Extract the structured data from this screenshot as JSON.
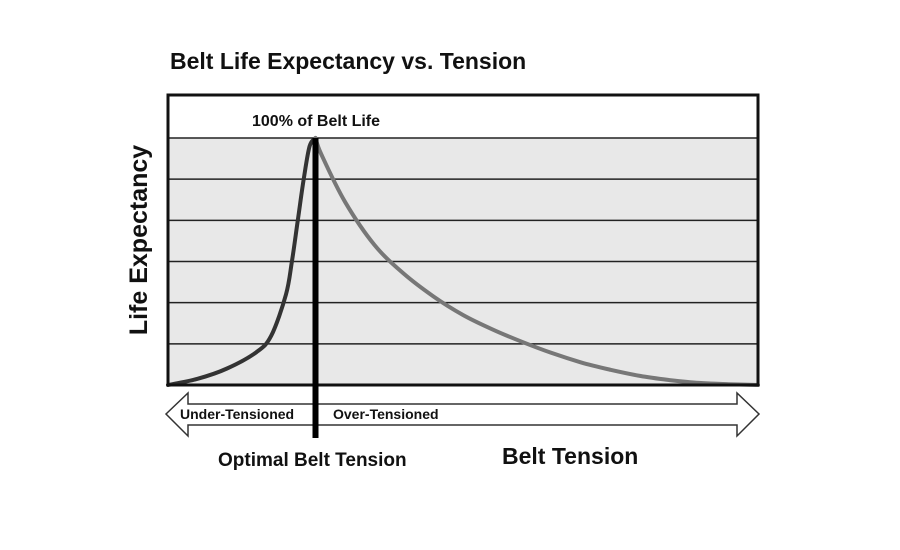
{
  "chart_data": {
    "type": "line",
    "title": "Belt Life Expectancy vs. Tension",
    "xlabel": "Belt Tension",
    "ylabel": "Life Expectancy",
    "xlim": [
      0,
      10
    ],
    "ylim": [
      0,
      7
    ],
    "grid": true,
    "annotations": {
      "peak": "100% of Belt Life",
      "optimal": "Optimal Belt Tension",
      "left_zone": "Under-Tensioned",
      "right_zone": "Over-Tensioned"
    },
    "series": [
      {
        "x": [
          0,
          0.5,
          1.0,
          1.5,
          1.75,
          2.0,
          2.1,
          2.2,
          2.3,
          2.4,
          2.5,
          2.6,
          3.0,
          3.5,
          4.0,
          4.5,
          5.0,
          5.5,
          6.0,
          6.5,
          7.0,
          7.5,
          8.0,
          8.5,
          9.0,
          9.5,
          10.0
        ],
        "y": [
          0,
          0.15,
          0.4,
          0.8,
          1.2,
          2.2,
          3.0,
          4.0,
          5.0,
          5.8,
          6.0,
          5.6,
          4.45,
          3.4,
          2.7,
          2.15,
          1.7,
          1.35,
          1.05,
          0.78,
          0.55,
          0.37,
          0.22,
          0.12,
          0.05,
          0.02,
          0
        ]
      }
    ],
    "colors": {
      "rising_line": "#333333",
      "falling_line": "#777777",
      "band_fill": "#e8e8e8",
      "grid": "#222222"
    }
  }
}
